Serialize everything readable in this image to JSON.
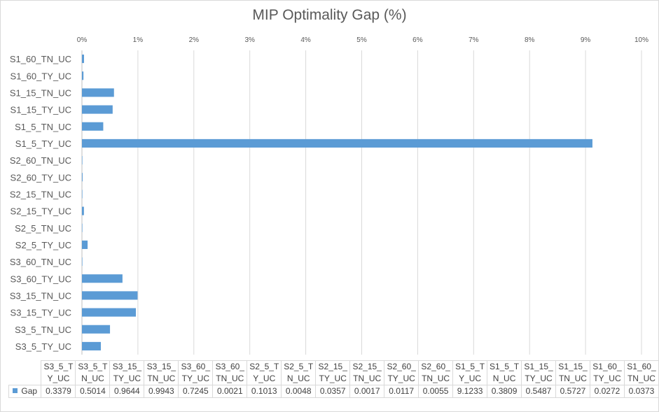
{
  "chart_data": {
    "type": "bar",
    "orientation": "horizontal",
    "title": "MIP Optimality Gap (%)",
    "xlim": [
      0,
      10
    ],
    "x_ticks": [
      "0%",
      "1%",
      "2%",
      "3%",
      "4%",
      "5%",
      "6%",
      "7%",
      "8%",
      "9%",
      "10%"
    ],
    "grid": true,
    "bar_color": "#5b9bd5",
    "categories": [
      "S3_5_TY_UC",
      "S3_5_TN_UC",
      "S3_15_TY_UC",
      "S3_15_TN_UC",
      "S3_60_TY_UC",
      "S3_60_TN_UC",
      "S2_5_TY_UC",
      "S2_5_TN_UC",
      "S2_15_TY_UC",
      "S2_15_TN_UC",
      "S2_60_TY_UC",
      "S2_60_TN_UC",
      "S1_5_TY_UC",
      "S1_5_TN_UC",
      "S1_15_TY_UC",
      "S1_15_TN_UC",
      "S1_60_TY_UC",
      "S1_60_TN_UC"
    ],
    "series": [
      {
        "name": "Gap",
        "values": [
          0.3379,
          0.5014,
          0.9644,
          0.9943,
          0.7245,
          0.0021,
          0.1013,
          0.0048,
          0.0357,
          0.0017,
          0.0117,
          0.0055,
          9.1233,
          0.3809,
          0.5487,
          0.5727,
          0.0272,
          0.0373
        ],
        "value_labels": [
          "0.3379",
          "0.5014",
          "0.9644",
          "0.9943",
          "0.7245",
          "0.0021",
          "0.1013",
          "0.0048",
          "0.0357",
          "0.0017",
          "0.0117",
          "0.0055",
          "9.1233",
          "0.3809",
          "0.5487",
          "0.5727",
          "0.0272",
          "0.0373"
        ]
      }
    ],
    "data_table": true
  }
}
